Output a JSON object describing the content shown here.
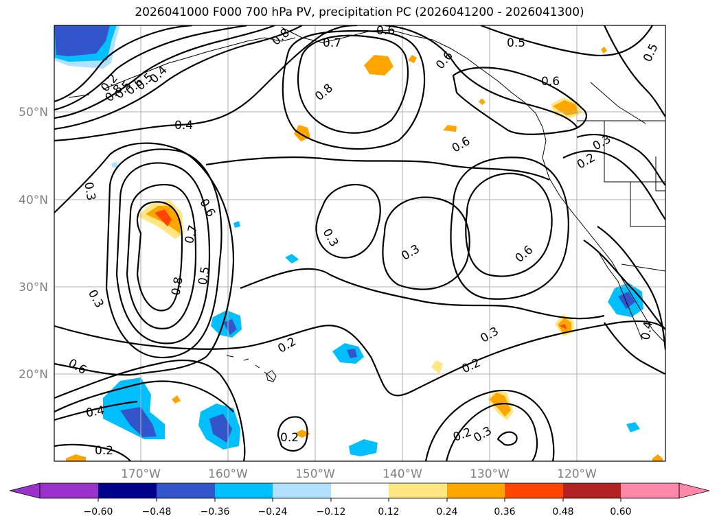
{
  "title": "2026041000 F000 700 hPa PV, precipitation PC (2026041200 - 2026041300)",
  "map": {
    "lon_labels": [
      "170°W",
      "160°W",
      "150°W",
      "140°W",
      "130°W",
      "120°W"
    ],
    "lat_labels": [
      "50°N",
      "40°N",
      "30°N",
      "20°N"
    ],
    "contour_labels": [
      "0.6",
      "0.7",
      "0.5",
      "0.8",
      "0.6",
      "0.5",
      "0.8",
      "0.6",
      "0.5",
      "0.4",
      "0.4",
      "0.8",
      "0.6",
      "0.6",
      "0.3",
      "0.2",
      "0.3",
      "0.6",
      "0.7",
      "0.8",
      "0.5",
      "0.3",
      "0.3",
      "0.6",
      "0.3",
      "0.6",
      "0.2",
      "0.3",
      "0.2",
      "0.2",
      "0.3",
      "0.2",
      "0.4",
      "0.4",
      "0.2",
      "0.2",
      "0.5"
    ]
  },
  "colorbar": {
    "tick_labels": [
      "−0.60",
      "−0.48",
      "−0.36",
      "−0.24",
      "−0.12",
      "0.12",
      "0.24",
      "0.36",
      "0.48",
      "0.60"
    ],
    "colors": [
      "#9933cc",
      "#00008b",
      "#3355cc",
      "#00bfff",
      "#b0e2ff",
      "#ffffff",
      "#ffe680",
      "#ffa500",
      "#ff4500",
      "#b22222",
      "#ff88aa"
    ]
  }
}
